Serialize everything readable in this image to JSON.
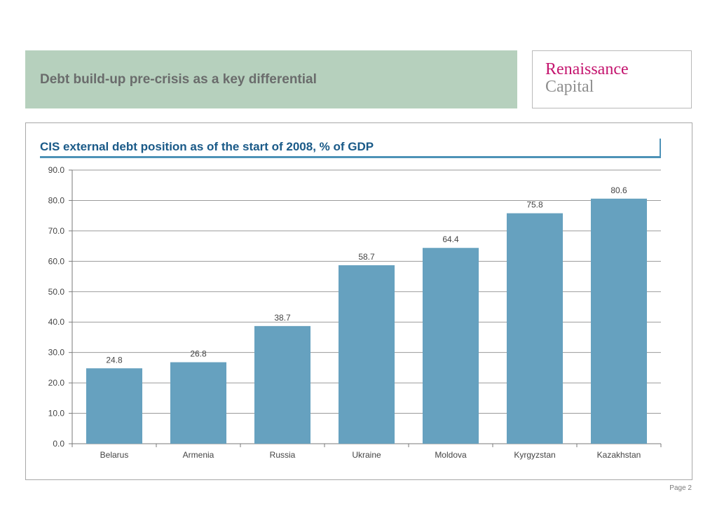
{
  "header": {
    "title": "Debt build-up pre-crisis as a key differential"
  },
  "logo": {
    "line1": "Renaissance",
    "line2": "Capital",
    "colors": {
      "primary": "#c4146e",
      "secondary": "#8f8f8f"
    }
  },
  "footer": {
    "page_label": "Page 2"
  },
  "colors": {
    "header_band": "#b6d0bd",
    "bar": "#66a1bf",
    "title": "#1a5a88",
    "title_rule": "#4d92b7"
  },
  "chart_data": {
    "type": "bar",
    "title": "CIS external debt position as of the start of 2008, % of GDP",
    "xlabel": "",
    "ylabel": "",
    "categories": [
      "Belarus",
      "Armenia",
      "Russia",
      "Ukraine",
      "Moldova",
      "Kyrgyzstan",
      "Kazakhstan"
    ],
    "values": [
      24.8,
      26.8,
      38.7,
      58.7,
      64.4,
      75.8,
      80.6
    ],
    "value_labels": [
      "24.8",
      "26.8",
      "38.7",
      "58.7",
      "64.4",
      "75.8",
      "80.6"
    ],
    "ylim": [
      0,
      90
    ],
    "yticks": [
      0,
      10,
      20,
      30,
      40,
      50,
      60,
      70,
      80,
      90
    ],
    "ytick_labels": [
      "0.0",
      "10.0",
      "20.0",
      "30.0",
      "40.0",
      "50.0",
      "60.0",
      "70.0",
      "80.0",
      "90.0"
    ],
    "grid": true,
    "legend": "none"
  }
}
